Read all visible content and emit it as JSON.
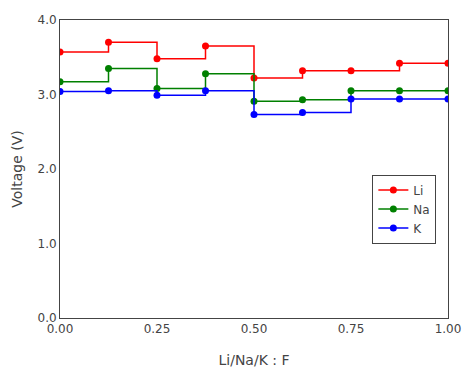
{
  "chart_data": {
    "type": "line",
    "line_style": "steps",
    "marker": "circle",
    "xlabel": "Li/Na/K : F",
    "ylabel": "Voltage (V)",
    "x": [
      0.0,
      0.125,
      0.25,
      0.375,
      0.5,
      0.625,
      0.75,
      0.875,
      1.0
    ],
    "series": [
      {
        "name": "Li",
        "color": "red",
        "values": [
          3.57,
          3.7,
          3.48,
          3.65,
          3.22,
          3.32,
          3.32,
          3.42,
          3.42
        ]
      },
      {
        "name": "Na",
        "color": "green",
        "values": [
          3.17,
          3.35,
          3.08,
          3.28,
          2.91,
          2.93,
          3.05,
          3.05,
          3.05
        ]
      },
      {
        "name": "K",
        "color": "blue",
        "values": [
          3.04,
          3.05,
          2.99,
          3.05,
          2.73,
          2.76,
          2.94,
          2.94,
          2.94
        ]
      }
    ],
    "xlim": [
      0.0,
      1.0
    ],
    "ylim": [
      0.0,
      4.0
    ],
    "xticks": [
      {
        "value": 0.0,
        "label": "0.00"
      },
      0.25,
      {
        "value": 0.5,
        "label": "0.50"
      },
      0.75,
      {
        "value": 1.0,
        "label": "1.00"
      }
    ],
    "yticks": [
      {
        "value": 0.0,
        "label": "0.0"
      },
      {
        "value": 1.0,
        "label": "1.0"
      },
      {
        "value": 2.0,
        "label": "2.0"
      },
      {
        "value": 3.0,
        "label": "3.0"
      },
      {
        "value": 4.0,
        "label": "4.0"
      }
    ],
    "grid": false,
    "legend": "lower right"
  }
}
